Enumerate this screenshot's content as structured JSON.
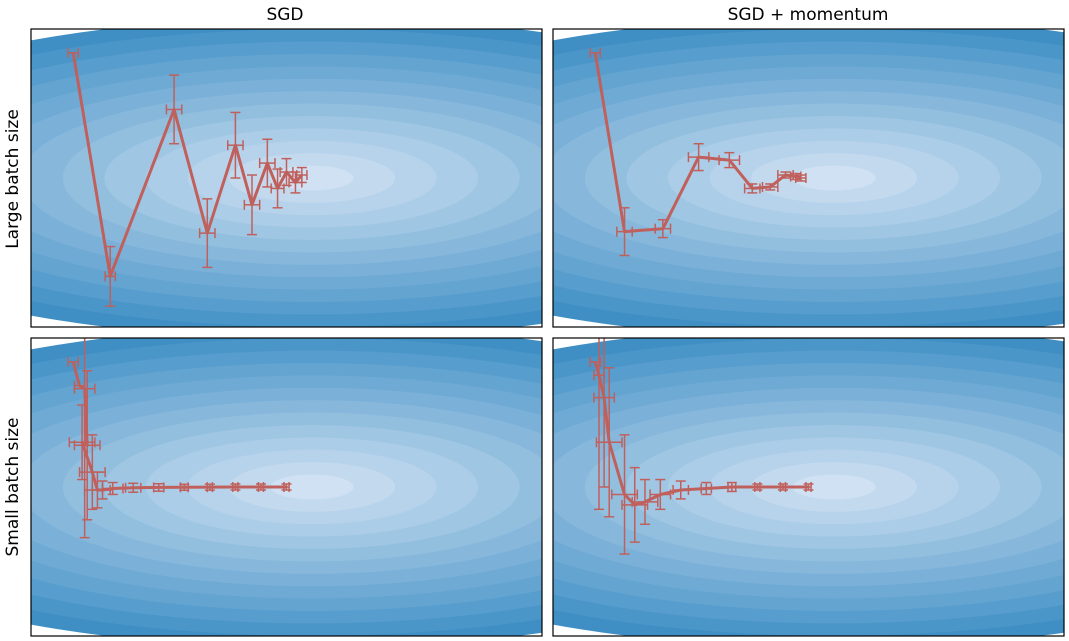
{
  "figure": {
    "col_titles": [
      "SGD",
      "SGD + momentum"
    ],
    "row_titles": [
      "Large batch size",
      "Small batch size"
    ]
  },
  "colors": {
    "trajectory": "#c0605c",
    "contour_outer": "#3f8fc5",
    "contour_inner": "#cfe1f2",
    "frame": "#000000"
  },
  "chart_data": [
    {
      "type": "line",
      "optimizer": "SGD",
      "batch": "Large batch size",
      "xlim": [
        -1,
        1
      ],
      "ylim": [
        -1,
        1
      ],
      "points": [
        {
          "x": -0.835,
          "y": 0.84,
          "ex": 0.02,
          "ey": 0.0
        },
        {
          "x": -0.69,
          "y": -0.66,
          "ex": 0.02,
          "ey": 0.2
        },
        {
          "x": -0.44,
          "y": 0.46,
          "ex": 0.03,
          "ey": 0.23
        },
        {
          "x": -0.31,
          "y": -0.37,
          "ex": 0.03,
          "ey": 0.23
        },
        {
          "x": -0.2,
          "y": 0.22,
          "ex": 0.03,
          "ey": 0.22
        },
        {
          "x": -0.135,
          "y": -0.18,
          "ex": 0.03,
          "ey": 0.2
        },
        {
          "x": -0.075,
          "y": 0.1,
          "ex": 0.03,
          "ey": 0.16
        },
        {
          "x": -0.035,
          "y": -0.07,
          "ex": 0.025,
          "ey": 0.13
        },
        {
          "x": -0.0,
          "y": 0.04,
          "ex": 0.025,
          "ey": 0.09
        },
        {
          "x": 0.035,
          "y": -0.03,
          "ex": 0.025,
          "ey": 0.07
        },
        {
          "x": 0.06,
          "y": 0.02,
          "ex": 0.02,
          "ey": 0.05
        }
      ]
    },
    {
      "type": "line",
      "optimizer": "SGD + momentum",
      "batch": "Large batch size",
      "xlim": [
        -1,
        1
      ],
      "ylim": [
        -1,
        1
      ],
      "points": [
        {
          "x": -0.835,
          "y": 0.84,
          "ex": 0.02,
          "ey": 0.0
        },
        {
          "x": -0.72,
          "y": -0.36,
          "ex": 0.03,
          "ey": 0.16
        },
        {
          "x": -0.57,
          "y": -0.34,
          "ex": 0.03,
          "ey": 0.06
        },
        {
          "x": -0.43,
          "y": 0.14,
          "ex": 0.04,
          "ey": 0.09
        },
        {
          "x": -0.31,
          "y": 0.12,
          "ex": 0.04,
          "ey": 0.05
        },
        {
          "x": -0.22,
          "y": -0.07,
          "ex": 0.03,
          "ey": 0.03
        },
        {
          "x": -0.15,
          "y": -0.06,
          "ex": 0.03,
          "ey": 0.02
        },
        {
          "x": -0.09,
          "y": 0.02,
          "ex": 0.03,
          "ey": 0.02
        },
        {
          "x": -0.05,
          "y": 0.01,
          "ex": 0.02,
          "ey": 0.02
        },
        {
          "x": -0.03,
          "y": 0.0,
          "ex": 0.02,
          "ey": 0.02
        }
      ]
    },
    {
      "type": "line",
      "optimizer": "SGD",
      "batch": "Small batch size",
      "xlim": [
        -1,
        1
      ],
      "ylim": [
        -1,
        1
      ],
      "points": [
        {
          "x": -0.835,
          "y": 0.84,
          "ex": 0.02,
          "ey": 0.0
        },
        {
          "x": -0.81,
          "y": 0.68,
          "ex": 0.02,
          "ey": 0.0
        },
        {
          "x": -0.79,
          "y": 0.66,
          "ex": 0.04,
          "ey": 1.0
        },
        {
          "x": -0.78,
          "y": 0.28,
          "ex": 0.05,
          "ey": 0.5
        },
        {
          "x": -0.8,
          "y": 0.3,
          "ex": 0.05,
          "ey": 0.25
        },
        {
          "x": -0.76,
          "y": 0.1,
          "ex": 0.05,
          "ey": 0.25
        },
        {
          "x": -0.74,
          "y": -0.02,
          "ex": 0.05,
          "ey": 0.12
        },
        {
          "x": -0.72,
          "y": -0.02,
          "ex": 0.04,
          "ey": 0.06
        },
        {
          "x": -0.68,
          "y": -0.01,
          "ex": 0.04,
          "ey": 0.04
        },
        {
          "x": -0.6,
          "y": -0.005,
          "ex": 0.03,
          "ey": 0.03
        },
        {
          "x": -0.5,
          "y": -0.003,
          "ex": 0.02,
          "ey": 0.025
        },
        {
          "x": -0.4,
          "y": -0.002,
          "ex": 0.015,
          "ey": 0.02
        },
        {
          "x": -0.3,
          "y": -0.001,
          "ex": 0.01,
          "ey": 0.02
        },
        {
          "x": -0.2,
          "y": 0.0,
          "ex": 0.01,
          "ey": 0.02
        },
        {
          "x": -0.1,
          "y": 0.0,
          "ex": 0.01,
          "ey": 0.02
        },
        {
          "x": 0.0,
          "y": 0.0,
          "ex": 0.01,
          "ey": 0.02
        }
      ]
    },
    {
      "type": "line",
      "optimizer": "SGD + momentum",
      "batch": "Small batch size",
      "xlim": [
        -1,
        1
      ],
      "ylim": [
        -1,
        1
      ],
      "points": [
        {
          "x": -0.835,
          "y": 0.84,
          "ex": 0.02,
          "ey": 0.0
        },
        {
          "x": -0.82,
          "y": 0.75,
          "ex": 0.02,
          "ey": 0.9
        },
        {
          "x": -0.8,
          "y": 0.6,
          "ex": 0.04,
          "ey": 0.6
        },
        {
          "x": -0.78,
          "y": 0.3,
          "ex": 0.05,
          "ey": 0.5
        },
        {
          "x": -0.72,
          "y": -0.05,
          "ex": 0.05,
          "ey": 0.4
        },
        {
          "x": -0.68,
          "y": -0.12,
          "ex": 0.05,
          "ey": 0.25
        },
        {
          "x": -0.64,
          "y": -0.1,
          "ex": 0.05,
          "ey": 0.15
        },
        {
          "x": -0.58,
          "y": -0.05,
          "ex": 0.04,
          "ey": 0.1
        },
        {
          "x": -0.5,
          "y": -0.02,
          "ex": 0.03,
          "ey": 0.06
        },
        {
          "x": -0.4,
          "y": -0.01,
          "ex": 0.02,
          "ey": 0.04
        },
        {
          "x": -0.3,
          "y": 0.0,
          "ex": 0.015,
          "ey": 0.03
        },
        {
          "x": -0.2,
          "y": 0.0,
          "ex": 0.01,
          "ey": 0.02
        },
        {
          "x": -0.1,
          "y": 0.0,
          "ex": 0.01,
          "ey": 0.02
        },
        {
          "x": 0.0,
          "y": 0.0,
          "ex": 0.01,
          "ey": 0.02
        }
      ]
    }
  ]
}
